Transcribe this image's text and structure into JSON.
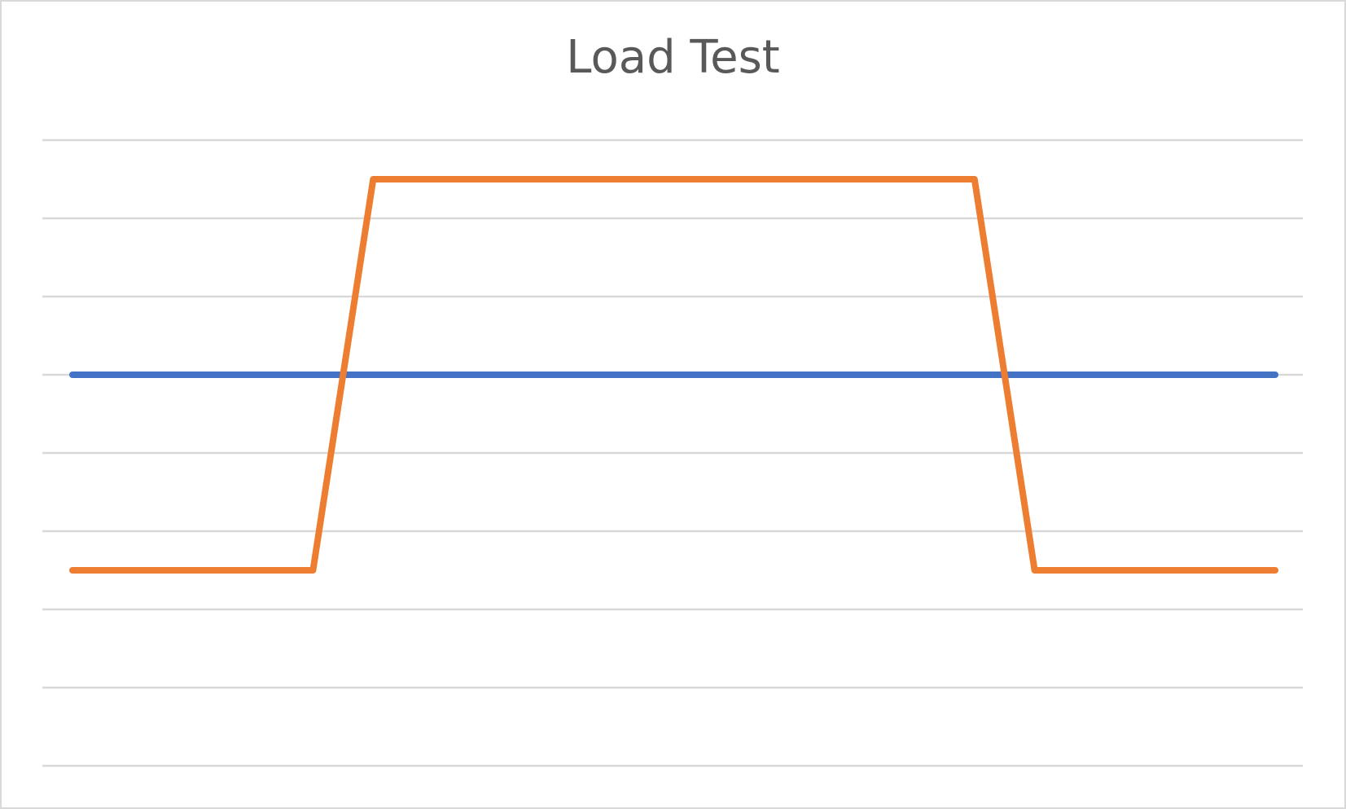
{
  "chart_data": {
    "type": "line",
    "title": "Load Test",
    "xlabel": "",
    "ylabel": "",
    "x": [
      0,
      1,
      2,
      3,
      4,
      5,
      6,
      7,
      8,
      9,
      10,
      11,
      12,
      13,
      14,
      15,
      16,
      17,
      18,
      19,
      20
    ],
    "ylim": [
      0,
      8
    ],
    "grid": true,
    "legend": "none",
    "series": [
      {
        "color": "#4472c4",
        "values": [
          5,
          5,
          5,
          5,
          5,
          5,
          5,
          5,
          5,
          5,
          5,
          5,
          5,
          5,
          5,
          5,
          5,
          5,
          5,
          5,
          5
        ]
      },
      {
        "color": "#ed7d31",
        "values": [
          2.5,
          2.5,
          2.5,
          2.5,
          2.5,
          7.5,
          7.5,
          7.5,
          7.5,
          7.5,
          7.5,
          7.5,
          7.5,
          7.5,
          7.5,
          7.5,
          2.5,
          2.5,
          2.5,
          2.5,
          2.5
        ]
      }
    ]
  },
  "colors": {
    "gridline": "#d9d9d9",
    "frame": "#d9d9d9",
    "title": "#595959"
  }
}
